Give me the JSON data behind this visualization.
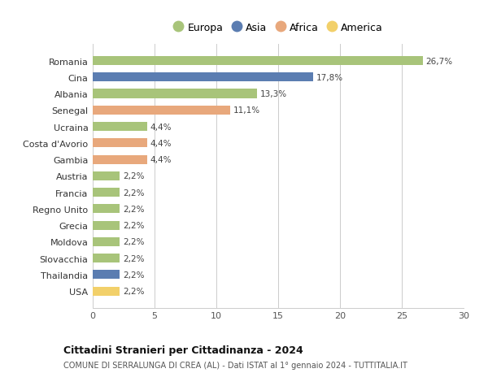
{
  "categories": [
    "Romania",
    "Cina",
    "Albania",
    "Senegal",
    "Ucraina",
    "Costa d'Avorio",
    "Gambia",
    "Austria",
    "Francia",
    "Regno Unito",
    "Grecia",
    "Moldova",
    "Slovacchia",
    "Thailandia",
    "USA"
  ],
  "values": [
    26.7,
    17.8,
    13.3,
    11.1,
    4.4,
    4.4,
    4.4,
    2.2,
    2.2,
    2.2,
    2.2,
    2.2,
    2.2,
    2.2,
    2.2
  ],
  "labels": [
    "26,7%",
    "17,8%",
    "13,3%",
    "11,1%",
    "4,4%",
    "4,4%",
    "4,4%",
    "2,2%",
    "2,2%",
    "2,2%",
    "2,2%",
    "2,2%",
    "2,2%",
    "2,2%",
    "2,2%"
  ],
  "continent": [
    "Europa",
    "Asia",
    "Europa",
    "Africa",
    "Europa",
    "Africa",
    "Africa",
    "Europa",
    "Europa",
    "Europa",
    "Europa",
    "Europa",
    "Europa",
    "Asia",
    "America"
  ],
  "colors": {
    "Europa": "#a8c47a",
    "Asia": "#5b7db1",
    "Africa": "#e8a87c",
    "America": "#f2d06a"
  },
  "legend_order": [
    "Europa",
    "Asia",
    "Africa",
    "America"
  ],
  "title": "Cittadini Stranieri per Cittadinanza - 2024",
  "subtitle": "COMUNE DI SERRALUNGA DI CREA (AL) - Dati ISTAT al 1° gennaio 2024 - TUTTITALIA.IT",
  "xlim": [
    0,
    30
  ],
  "xticks": [
    0,
    5,
    10,
    15,
    20,
    25,
    30
  ],
  "background_color": "#ffffff",
  "grid_color": "#cccccc"
}
